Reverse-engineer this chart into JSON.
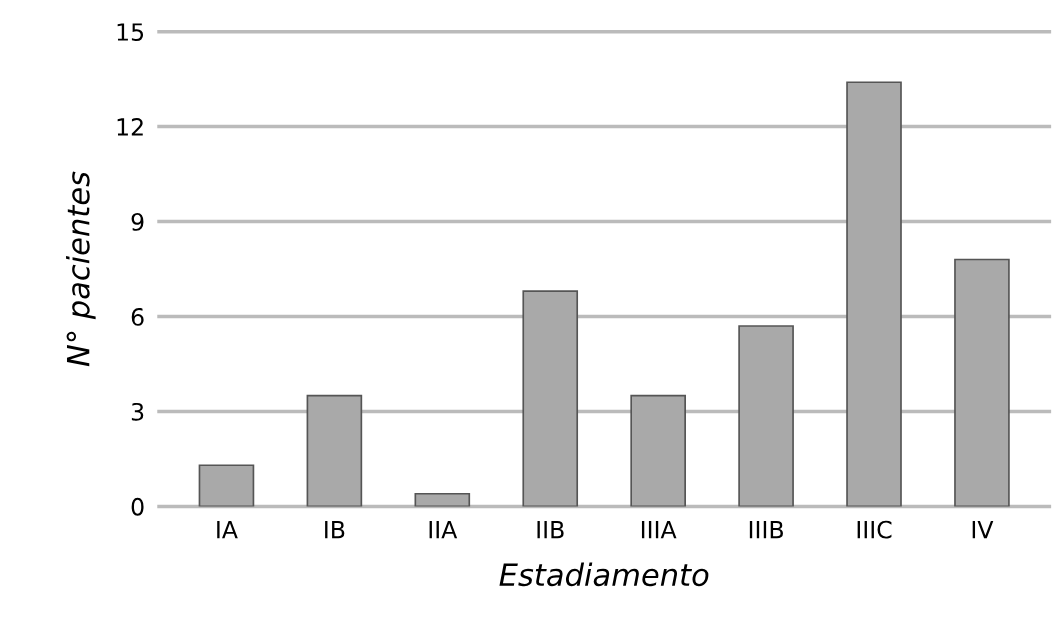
{
  "chart_data": {
    "type": "bar",
    "xlabel": "Estadiamento",
    "ylabel": "N° pacientes",
    "categories": [
      "IA",
      "IB",
      "IIA",
      "IIB",
      "IIIA",
      "IIIB",
      "IIIC",
      "IV"
    ],
    "values": [
      1.3,
      3.5,
      0.4,
      6.8,
      3.5,
      5.7,
      13.4,
      7.8
    ],
    "color": "#a9a9a9",
    "ylim": [
      0,
      15
    ],
    "yticks": [
      0,
      3,
      6,
      9,
      12,
      15
    ],
    "grid": "y"
  }
}
